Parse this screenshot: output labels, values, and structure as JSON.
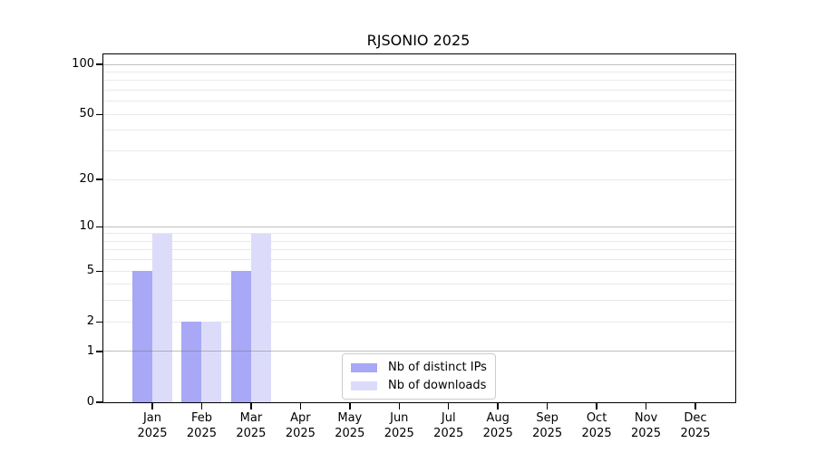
{
  "chart_data": {
    "type": "bar",
    "title": "RJSONIO 2025",
    "categories": [
      "Jan",
      "Feb",
      "Mar",
      "Apr",
      "May",
      "Jun",
      "Jul",
      "Aug",
      "Sep",
      "Oct",
      "Nov",
      "Dec"
    ],
    "x_year": "2025",
    "series": [
      {
        "name": "Nb of distinct IPs",
        "color": "#a8a8f6",
        "values": [
          5,
          2,
          5,
          0,
          0,
          0,
          0,
          0,
          0,
          0,
          0,
          0
        ]
      },
      {
        "name": "Nb of downloads",
        "color": "#dcdcfa",
        "values": [
          9,
          2,
          9,
          0,
          0,
          0,
          0,
          0,
          0,
          0,
          0,
          0
        ]
      }
    ],
    "y_ticks": [
      100,
      50,
      20,
      10,
      5,
      2,
      1,
      0
    ],
    "y_scale": "log1p",
    "ylim": [
      0,
      115
    ],
    "grid": true,
    "grid_major_at": [
      1,
      10,
      100
    ],
    "grid_minor_at": [
      2,
      3,
      4,
      5,
      6,
      7,
      8,
      9,
      20,
      30,
      40,
      50,
      60,
      70,
      80,
      90
    ],
    "legend_position": "inside-bottom-center",
    "xlabel": "",
    "ylabel": ""
  },
  "colors": {
    "axis": "#000000",
    "grid_minor": "#e9e9e9",
    "grid_major": "#9a9a9a",
    "background": "#ffffff",
    "legend_border": "#cccccc"
  }
}
